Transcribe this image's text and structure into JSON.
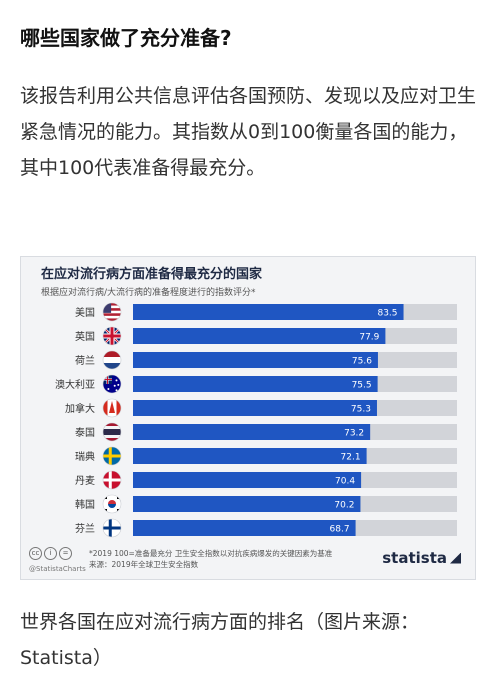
{
  "article": {
    "heading": "哪些国家做了充分准备?",
    "intro": "该报告利用公共信息评估各国预防、发现以及应对卫生紧急情况的能力。其指数从0到100衡量各国的能力，其中100代表准备得最充分。",
    "caption": "世界各国在应对流行病方面的排名（图片来源：Statista）"
  },
  "chart_footer": {
    "handle": "@StatistaCharts",
    "note_1": "*2019 100=准备最充分 卫生安全指数以对抗疾病爆发的关键因素为基准",
    "note_2": "来源：2019年全球卫生安全指数",
    "brand": "statista"
  },
  "colors": {
    "bar": "#1f56c2",
    "track": "#d2d4d9",
    "card_bg": "#f3f4f6"
  },
  "chart_data": {
    "type": "bar",
    "orientation": "horizontal",
    "title": "在应对流行病方面准备得最充分的国家",
    "subtitle": "根据应对流行病/大流行病的准备程度进行的指数评分*",
    "categories": [
      "美国",
      "英国",
      "荷兰",
      "澳大利亚",
      "加拿大",
      "泰国",
      "瑞典",
      "丹麦",
      "韩国",
      "芬兰"
    ],
    "values": [
      83.5,
      77.9,
      75.6,
      75.5,
      75.3,
      73.2,
      72.1,
      70.4,
      70.2,
      68.7
    ],
    "flags": [
      "us-flag",
      "uk-flag",
      "nl-flag",
      "au-flag",
      "ca-flag",
      "th-flag",
      "se-flag",
      "dk-flag",
      "kr-flag",
      "fi-flag"
    ],
    "xlim": [
      0,
      100
    ],
    "grid": false,
    "data_labels": true
  }
}
